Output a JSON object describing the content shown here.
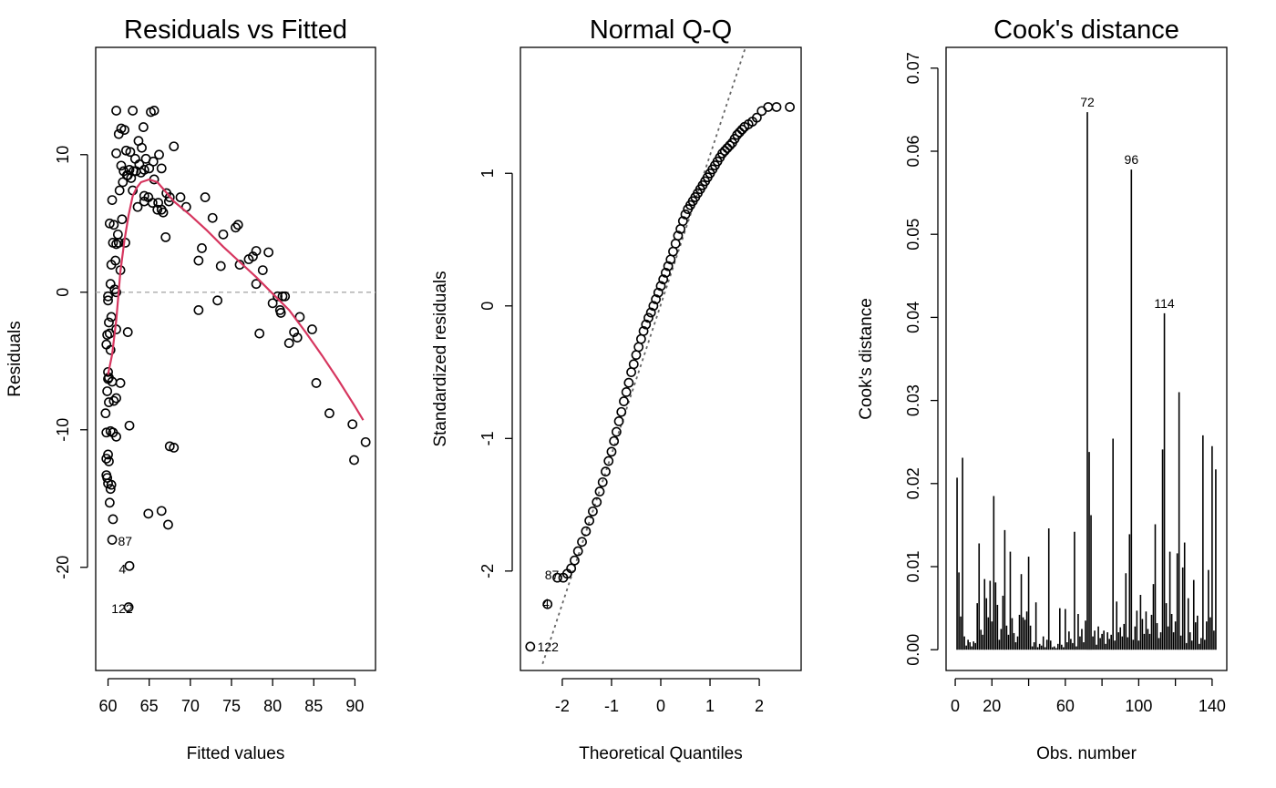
{
  "chart_data": [
    {
      "type": "scatter",
      "title": "Residuals vs Fitted",
      "xlabel": "Fitted values",
      "ylabel": "Residuals",
      "xlim": [
        58.5,
        92.5
      ],
      "ylim": [
        -27.5,
        17.8
      ],
      "xticks": [
        60,
        65,
        70,
        75,
        80,
        85,
        90
      ],
      "yticks": [
        -20,
        -10,
        0,
        10
      ],
      "grid": false,
      "reference_line": {
        "y": 0,
        "style": "dashed",
        "color": "#aaaaaa"
      },
      "smoother_color": "#d6365f",
      "smoother": {
        "x": [
          60.0,
          60.5,
          61.0,
          61.5,
          62.0,
          62.5,
          63.0,
          63.5,
          64.0,
          65.0,
          66.0,
          67.0,
          68.0,
          70.0,
          72.0,
          74.0,
          76.0,
          78.0,
          80.0,
          82.0,
          84.0,
          86.0,
          88.0,
          90.0,
          91.0
        ],
        "y": [
          -6.0,
          -4.5,
          -2.0,
          1.5,
          3.8,
          5.6,
          7.0,
          7.6,
          8.0,
          8.2,
          8.0,
          7.3,
          6.6,
          5.6,
          4.5,
          3.3,
          2.2,
          1.1,
          -0.1,
          -1.3,
          -2.9,
          -4.6,
          -6.4,
          -8.3,
          -9.3
        ]
      },
      "x": [
        61.0,
        61.6,
        63.0,
        65.2,
        65.6,
        61.3,
        62.0,
        63.7,
        64.3,
        61.0,
        62.2,
        62.7,
        63.3,
        64.1,
        64.6,
        61.6,
        61.9,
        62.4,
        62.8,
        63.4,
        64.0,
        65.0,
        65.5,
        66.2,
        61.4,
        61.8,
        62.3,
        62.6,
        63.1,
        63.8,
        64.4,
        65.6,
        66.5,
        67.1,
        68.0,
        63.0,
        64.4,
        64.9,
        65.4,
        66.0,
        66.7,
        67.5,
        68.8,
        69.5,
        71.8,
        63.6,
        64.4,
        66.1,
        66.5,
        67.4,
        60.5,
        60.2,
        60.7,
        61.2,
        61.7,
        62.1,
        60.6,
        61.0,
        61.3,
        60.4,
        60.9,
        61.5,
        60.3,
        60.8,
        61.0,
        67.0,
        71.0,
        71.4,
        72.7,
        75.5,
        75.8,
        74.0,
        73.7,
        76.0,
        77.6,
        78.0,
        77.1,
        78.8,
        79.5,
        73.3,
        71.0,
        78.0,
        78.4,
        80.0,
        80.6,
        80.9,
        81.0,
        81.2,
        81.5,
        82.0,
        82.6,
        83.0,
        83.3,
        84.8,
        85.3,
        86.9,
        89.7,
        89.9,
        91.3,
        60.0,
        60.0,
        60.4,
        60.1,
        60.2,
        59.9,
        60.3,
        59.8,
        60.0,
        60.1,
        60.0,
        60.5,
        61.0,
        61.5,
        62.4,
        59.9,
        60.1,
        60.7,
        61.0,
        59.7,
        59.8,
        60.3,
        60.6,
        61.0,
        60.0,
        59.8,
        60.1,
        60.4,
        59.9,
        59.8,
        60.0,
        60.3,
        60.2,
        60.6,
        62.6,
        64.9,
        66.5,
        67.3,
        67.5,
        68.0,
        60.5,
        62.6,
        62.5
      ],
      "y": [
        13.2,
        11.9,
        13.2,
        13.1,
        13.2,
        11.5,
        11.8,
        11.0,
        12.0,
        10.1,
        10.3,
        10.2,
        9.7,
        10.5,
        9.7,
        9.2,
        8.8,
        8.5,
        8.3,
        8.8,
        8.7,
        9.0,
        9.5,
        10.0,
        7.4,
        8.0,
        8.5,
        8.9,
        8.8,
        9.3,
        8.9,
        8.2,
        9.0,
        7.2,
        10.6,
        7.4,
        7.0,
        6.9,
        6.5,
        6.0,
        5.8,
        6.9,
        6.9,
        6.2,
        6.9,
        6.2,
        6.6,
        6.5,
        6.0,
        6.6,
        6.7,
        5.0,
        4.9,
        4.2,
        5.3,
        3.6,
        3.6,
        3.5,
        3.6,
        2.0,
        2.3,
        1.6,
        0.6,
        0.2,
        0.0,
        4.0,
        2.3,
        3.2,
        5.4,
        4.7,
        4.9,
        4.2,
        1.9,
        2.0,
        2.6,
        3.0,
        2.4,
        1.6,
        2.9,
        -0.6,
        -1.3,
        0.6,
        -3.0,
        -0.8,
        -0.3,
        -1.3,
        -1.5,
        -0.3,
        -0.3,
        -3.7,
        -2.9,
        -3.3,
        -1.8,
        -2.7,
        -6.6,
        -8.8,
        -9.6,
        -12.2,
        -10.9,
        -0.3,
        -0.6,
        -1.8,
        -2.2,
        -3.0,
        -3.1,
        -4.2,
        -3.8,
        -5.8,
        -6.2,
        -6.3,
        -6.5,
        -2.7,
        -6.6,
        -2.9,
        -7.2,
        -8.0,
        -7.9,
        -7.7,
        -8.8,
        -10.2,
        -10.1,
        -10.2,
        -10.5,
        -11.8,
        -12.1,
        -12.3,
        -14.0,
        -13.5,
        -13.3,
        -13.9,
        -14.3,
        -15.3,
        -16.5,
        -9.7,
        -16.1,
        -15.9,
        -16.9,
        -11.2,
        -11.3,
        -18.0,
        -19.9,
        -22.9
      ],
      "point_labels": [
        {
          "text": "87",
          "x": 61.1,
          "y": -18.1
        },
        {
          "text": "4",
          "x": 61.2,
          "y": -20.1
        },
        {
          "text": "122",
          "x": 60.3,
          "y": -23.0
        }
      ]
    },
    {
      "type": "scatter",
      "title": "Normal Q-Q",
      "xlabel": "Theoretical Quantiles",
      "ylabel": "Standardized residuals",
      "xlim": [
        -2.85,
        2.85
      ],
      "ylim": [
        -2.75,
        1.95
      ],
      "xticks": [
        -2,
        -1,
        0,
        1,
        2
      ],
      "yticks": [
        -2,
        -1,
        0,
        1
      ],
      "grid": false,
      "reference_line": {
        "x": [
          -2.4,
          1.72
        ],
        "y": [
          -2.7,
          1.95
        ],
        "style": "dotted",
        "color": "#666666"
      },
      "x": [
        -2.65,
        -2.3,
        -2.1,
        -1.98,
        -1.9,
        -1.82,
        -1.75,
        -1.68,
        -1.6,
        -1.52,
        -1.45,
        -1.38,
        -1.3,
        -1.24,
        -1.18,
        -1.12,
        -1.06,
        -1.0,
        -0.95,
        -0.9,
        -0.85,
        -0.8,
        -0.75,
        -0.7,
        -0.65,
        -0.6,
        -0.55,
        -0.5,
        -0.45,
        -0.4,
        -0.35,
        -0.3,
        -0.25,
        -0.2,
        -0.15,
        -0.1,
        -0.05,
        0.0,
        0.05,
        0.1,
        0.15,
        0.2,
        0.25,
        0.3,
        0.35,
        0.4,
        0.45,
        0.5,
        0.55,
        0.6,
        0.65,
        0.7,
        0.75,
        0.8,
        0.85,
        0.9,
        0.95,
        1.0,
        1.05,
        1.1,
        1.15,
        1.2,
        1.25,
        1.3,
        1.35,
        1.4,
        1.45,
        1.5,
        1.55,
        1.6,
        1.65,
        1.7,
        1.78,
        1.86,
        1.95,
        2.05,
        2.18,
        2.35,
        2.62
      ],
      "y": [
        -2.57,
        -2.25,
        -2.05,
        -2.05,
        -2.02,
        -1.98,
        -1.92,
        -1.85,
        -1.78,
        -1.7,
        -1.62,
        -1.55,
        -1.48,
        -1.4,
        -1.33,
        -1.25,
        -1.17,
        -1.1,
        -1.02,
        -0.95,
        -0.87,
        -0.8,
        -0.72,
        -0.65,
        -0.58,
        -0.5,
        -0.44,
        -0.37,
        -0.31,
        -0.25,
        -0.19,
        -0.14,
        -0.09,
        -0.05,
        0.0,
        0.05,
        0.1,
        0.15,
        0.2,
        0.25,
        0.3,
        0.35,
        0.41,
        0.47,
        0.53,
        0.58,
        0.64,
        0.69,
        0.73,
        0.76,
        0.79,
        0.82,
        0.85,
        0.88,
        0.91,
        0.94,
        0.97,
        1.0,
        1.03,
        1.06,
        1.09,
        1.12,
        1.15,
        1.17,
        1.19,
        1.21,
        1.23,
        1.26,
        1.29,
        1.31,
        1.33,
        1.35,
        1.37,
        1.39,
        1.42,
        1.47,
        1.5,
        1.5,
        1.5
      ],
      "point_labels": [
        {
          "text": "87",
          "x": -2.3,
          "y": -2.03
        },
        {
          "text": "4",
          "x": -2.35,
          "y": -2.24
        },
        {
          "text": "122",
          "x": -2.45,
          "y": -2.57
        }
      ]
    },
    {
      "type": "bar",
      "title": "Cook's distance",
      "xlabel": "Obs. number",
      "ylabel": "Cook's distance",
      "xlim": [
        -5,
        148
      ],
      "ylim": [
        -0.0025,
        0.0725
      ],
      "xticks": [
        0,
        20,
        60,
        100,
        140
      ],
      "xticks_unlabeled": [
        40,
        80,
        120
      ],
      "yticks": [
        0.0,
        0.01,
        0.02,
        0.03,
        0.04,
        0.05,
        0.06,
        0.07
      ],
      "ytick_labels": [
        "0.00",
        "0.01",
        "0.02",
        "0.03",
        "0.04",
        "0.05",
        "0.06",
        "0.07"
      ],
      "grid": false,
      "observations": [
        1,
        2,
        3,
        4,
        5,
        6,
        7,
        8,
        9,
        10,
        11,
        12,
        13,
        14,
        15,
        16,
        17,
        18,
        19,
        20,
        21,
        22,
        23,
        24,
        25,
        26,
        27,
        28,
        29,
        30,
        31,
        32,
        33,
        34,
        35,
        36,
        37,
        38,
        39,
        40,
        41,
        42,
        43,
        44,
        45,
        46,
        47,
        48,
        49,
        50,
        51,
        52,
        53,
        54,
        55,
        56,
        57,
        58,
        59,
        60,
        61,
        62,
        63,
        64,
        65,
        66,
        67,
        68,
        69,
        70,
        71,
        72,
        73,
        74,
        75,
        76,
        77,
        78,
        79,
        80,
        81,
        82,
        83,
        84,
        85,
        86,
        87,
        88,
        89,
        90,
        91,
        92,
        93,
        94,
        95,
        96,
        97,
        98,
        99,
        100,
        101,
        102,
        103,
        104,
        105,
        106,
        107,
        108,
        109,
        110,
        111,
        112,
        113,
        114,
        115,
        116,
        117,
        118,
        119,
        120,
        121,
        122,
        123,
        124,
        125,
        126,
        127,
        128,
        129,
        130,
        131,
        132,
        133,
        134,
        135,
        136,
        137,
        138,
        139,
        140,
        141,
        142
      ],
      "values": [
        0.0207,
        0.0093,
        0.004,
        0.0231,
        0.0016,
        0.0005,
        0.0012,
        0.0009,
        0.0004,
        0.001,
        0.0008,
        0.0056,
        0.0128,
        0.0024,
        0.0018,
        0.0085,
        0.0062,
        0.0039,
        0.0083,
        0.0034,
        0.0185,
        0.0081,
        0.0054,
        0.0012,
        0.0025,
        0.0065,
        0.0144,
        0.0029,
        0.0018,
        0.0118,
        0.0038,
        0.002,
        0.0009,
        0.0016,
        0.0042,
        0.0091,
        0.0039,
        0.0036,
        0.0046,
        0.0112,
        0.0029,
        0.0004,
        0.0009,
        0.0057,
        0.0003,
        0.0007,
        0.0005,
        0.0016,
        0.0003,
        0.0012,
        0.0146,
        0.0011,
        0.0003,
        0.0004,
        0.0002,
        0.0007,
        0.005,
        0.0006,
        0.0003,
        0.0049,
        0.0009,
        0.0022,
        0.0013,
        0.0008,
        0.0142,
        0.0004,
        0.0043,
        0.0016,
        0.0025,
        0.0009,
        0.0035,
        0.0647,
        0.0238,
        0.0162,
        0.0016,
        0.0023,
        0.0006,
        0.0028,
        0.0014,
        0.0019,
        0.0023,
        0.0007,
        0.0021,
        0.0013,
        0.0018,
        0.0254,
        0.0011,
        0.0058,
        0.0021,
        0.0027,
        0.0016,
        0.0031,
        0.0092,
        0.0015,
        0.0139,
        0.0578,
        0.0012,
        0.0028,
        0.0047,
        0.0011,
        0.0066,
        0.0037,
        0.0019,
        0.0046,
        0.0025,
        0.0019,
        0.0042,
        0.0079,
        0.0151,
        0.0032,
        0.0014,
        0.0021,
        0.0241,
        0.0405,
        0.0056,
        0.0028,
        0.0118,
        0.0043,
        0.0021,
        0.0034,
        0.0116,
        0.031,
        0.0017,
        0.0099,
        0.0129,
        0.0008,
        0.0062,
        0.0021,
        0.0011,
        0.0084,
        0.0033,
        0.0041,
        0.0007,
        0.0014,
        0.0258,
        0.0012,
        0.0034,
        0.0096,
        0.0039,
        0.0245,
        0.0023,
        0.0217
      ],
      "point_labels": [
        {
          "text": "72",
          "x": 72,
          "y": 0.0647
        },
        {
          "text": "96",
          "x": 96,
          "y": 0.0578
        },
        {
          "text": "114",
          "x": 114,
          "y": 0.0405
        }
      ]
    }
  ],
  "colors": {
    "smoother": "#d6365f",
    "reference": "#aaaaaa",
    "qqline": "#666666"
  }
}
